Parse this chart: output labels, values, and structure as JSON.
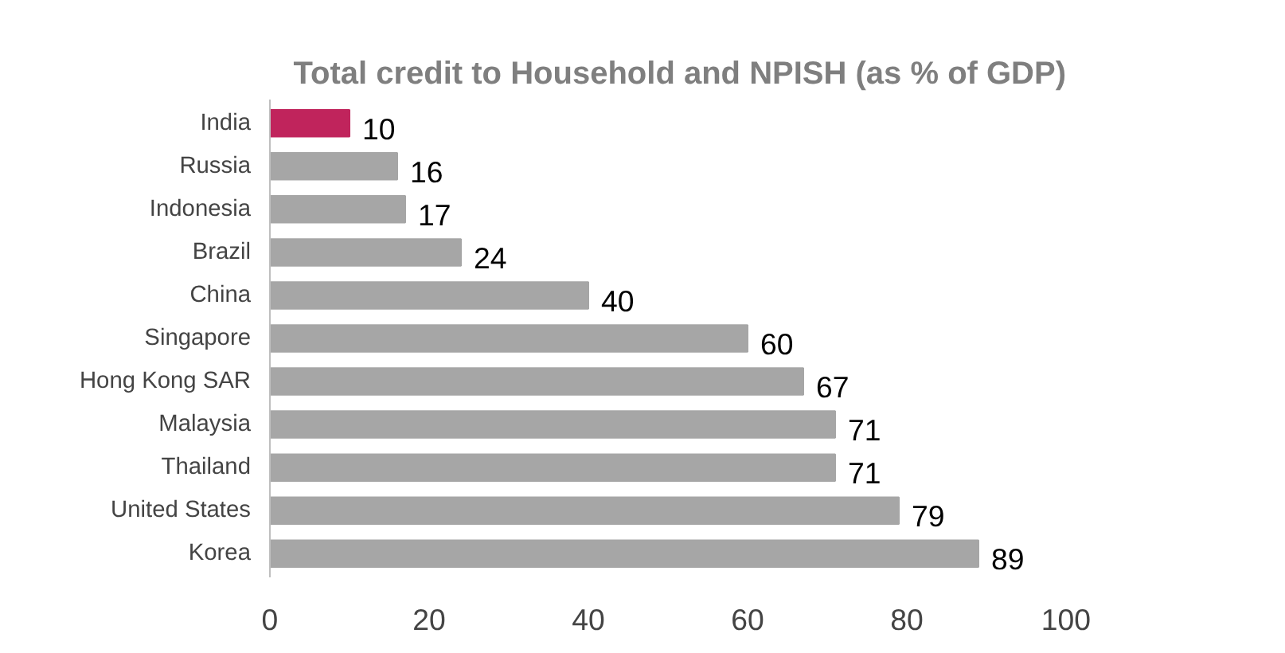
{
  "chart_data": {
    "type": "bar",
    "orientation": "horizontal",
    "title": "Total credit to Household and NPISH (as % of GDP)",
    "categories": [
      "India",
      "Russia",
      "Indonesia",
      "Brazil",
      "China",
      "Singapore",
      "Hong Kong SAR",
      "Malaysia",
      "Thailand",
      "United States",
      "Korea"
    ],
    "values": [
      10,
      16,
      17,
      24,
      40,
      60,
      67,
      71,
      71,
      79,
      89
    ],
    "colors": [
      "#c0245c",
      "#a6a6a6",
      "#a6a6a6",
      "#a6a6a6",
      "#a6a6a6",
      "#a6a6a6",
      "#a6a6a6",
      "#a6a6a6",
      "#a6a6a6",
      "#a6a6a6",
      "#a6a6a6"
    ],
    "xlim": [
      0,
      100
    ],
    "xticks": [
      0,
      20,
      40,
      60,
      80,
      100
    ],
    "data_labels": true,
    "grid": false
  }
}
